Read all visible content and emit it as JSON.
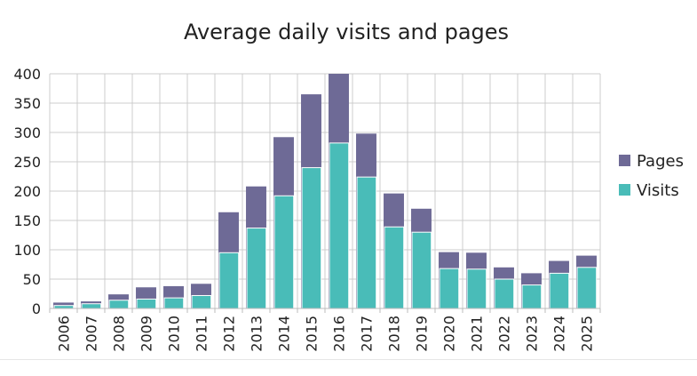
{
  "chart_data": {
    "type": "bar",
    "title": "Average daily visits and pages",
    "xlabel": "",
    "ylabel": "",
    "categories": [
      "2006",
      "2007",
      "2008",
      "2009",
      "2010",
      "2011",
      "2012",
      "2013",
      "2014",
      "2015",
      "2016",
      "2017",
      "2018",
      "2019",
      "2020",
      "2021",
      "2022",
      "2023",
      "2024",
      "2025"
    ],
    "series": [
      {
        "name": "Pages",
        "color": "#6e6a96",
        "values": [
          10,
          12,
          24,
          36,
          38,
          42,
          164,
          208,
          292,
          365,
          400,
          298,
          196,
          170,
          96,
          95,
          70,
          60,
          81,
          90
        ]
      },
      {
        "name": "Visits",
        "color": "#49bcb8",
        "values": [
          5,
          8,
          14,
          16,
          18,
          22,
          95,
          137,
          192,
          240,
          282,
          224,
          139,
          130,
          68,
          67,
          50,
          40,
          60,
          70
        ]
      }
    ],
    "ylim": [
      0,
      400
    ],
    "yticks": [
      0,
      50,
      100,
      150,
      200,
      250,
      300,
      350,
      400
    ],
    "grid": true,
    "legend_position": "right"
  }
}
